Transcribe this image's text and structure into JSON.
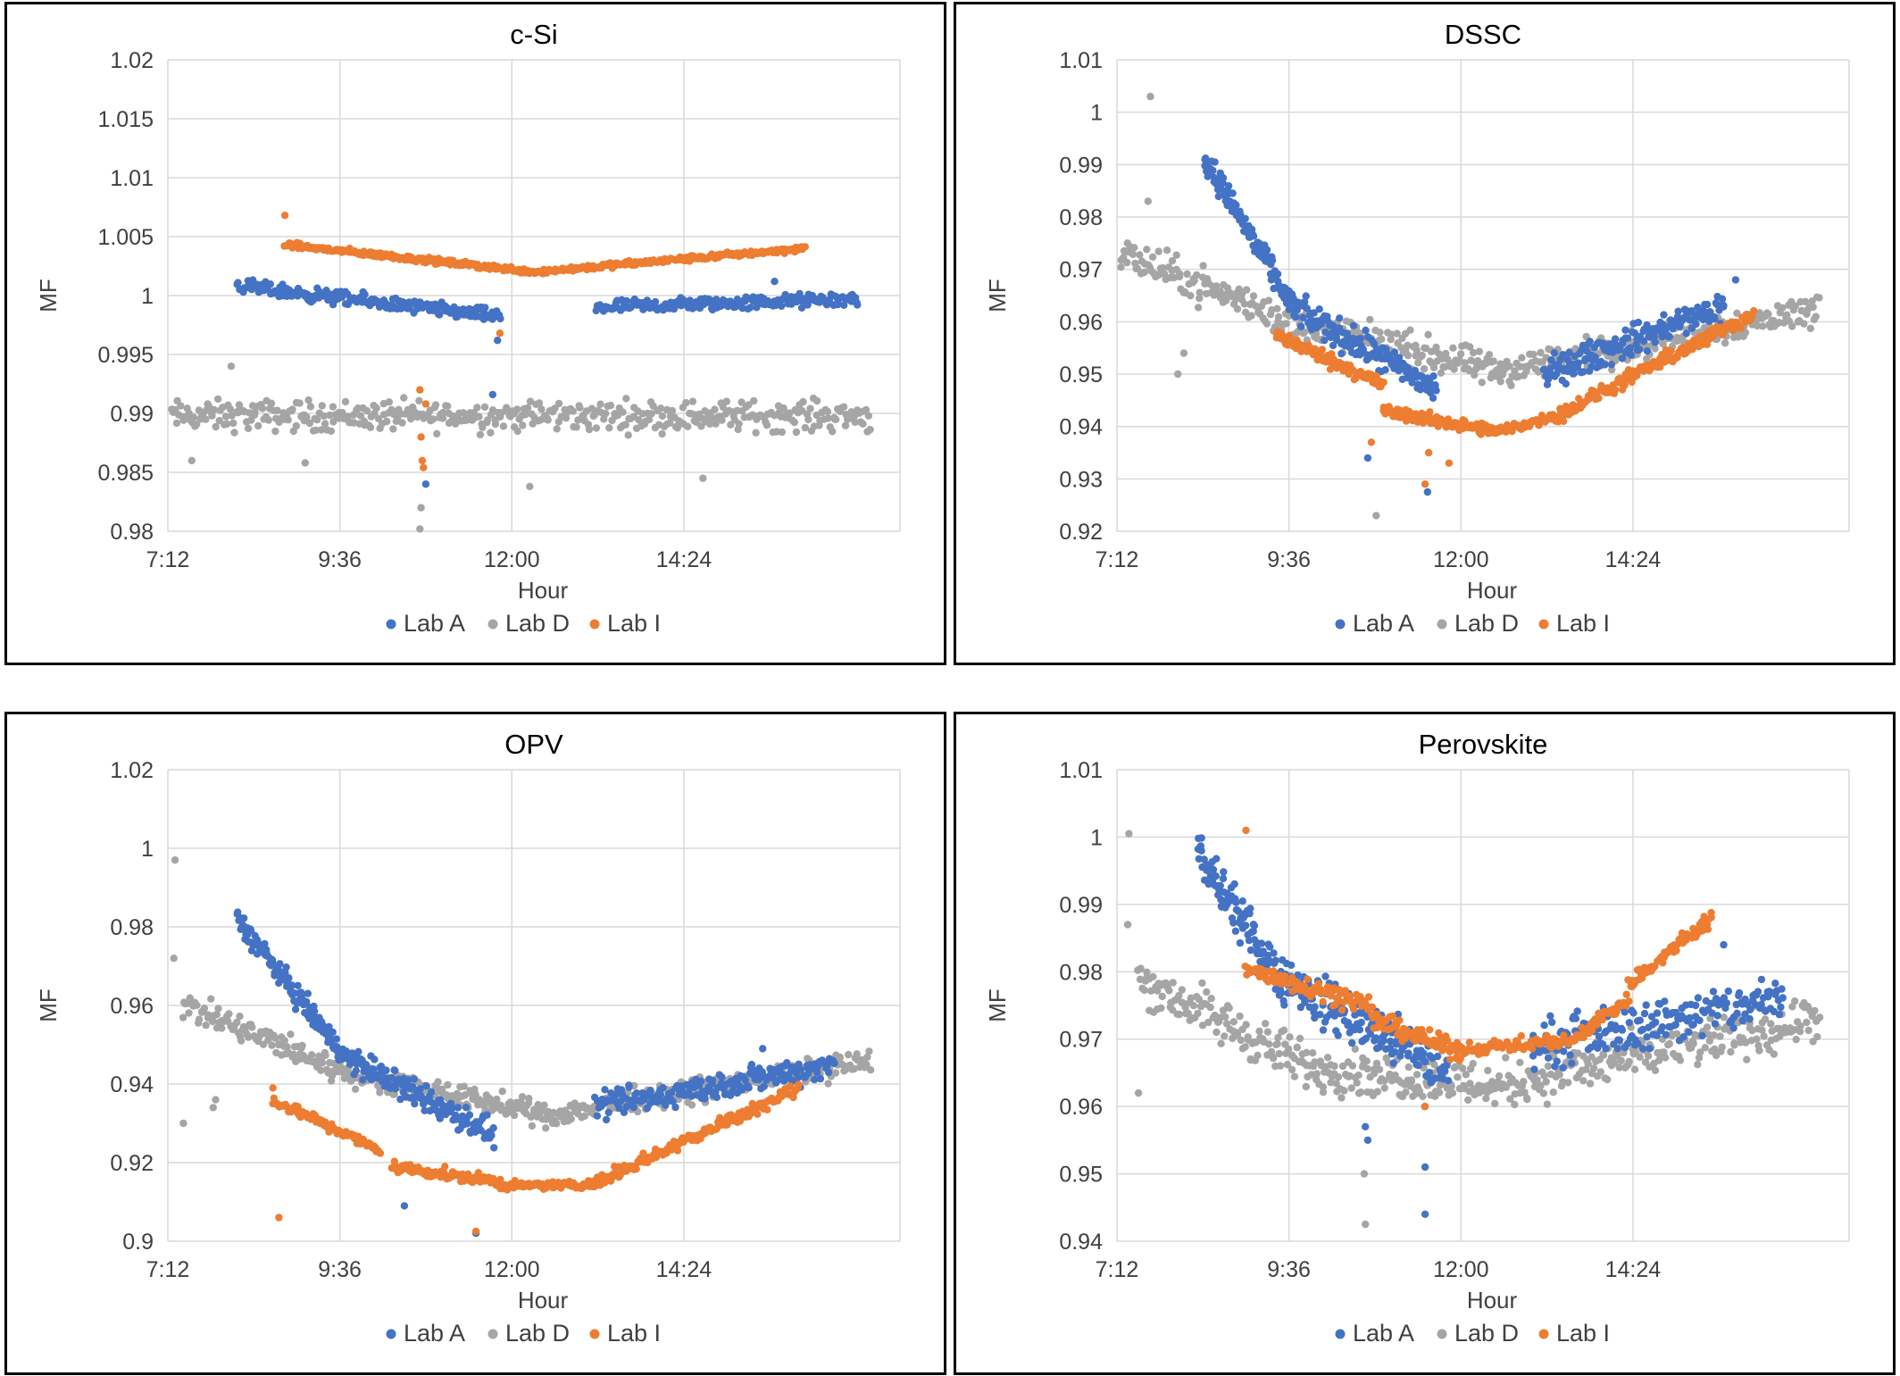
{
  "legend_labels": [
    "Lab A",
    "Lab D",
    "Lab I"
  ],
  "colors": {
    "Lab A": "#4472C4",
    "Lab D": "#A5A5A5",
    "Lab I": "#ED7D31",
    "grid": "#D9D9D9",
    "text": "#404040"
  },
  "chart_data": [
    {
      "type": "scatter",
      "title": "c-Si",
      "xlabel": "Hour",
      "ylabel": "MF",
      "xlim": [
        "7:12",
        "17:25"
      ],
      "xticks": [
        "7:12",
        "9:36",
        "12:00",
        "14:24"
      ],
      "ylim": [
        0.98,
        1.02
      ],
      "yticks": [
        "0.98",
        "0.985",
        "0.99",
        "0.995",
        "1",
        "1.005",
        "1.01",
        "1.015",
        "1.02"
      ],
      "grid": true,
      "legend_position": "bottom",
      "series": [
        {
          "name": "Lab A",
          "segments": [
            {
              "x0": "8:10",
              "x1": "11:50",
              "y0": 1.0008,
              "y1": 0.9982,
              "noise": 0.0005,
              "n": 220
            },
            {
              "x0": "13:10",
              "x1": "16:50",
              "y0": 0.999,
              "y1": 0.9997,
              "noise": 0.0005,
              "n": 200
            }
          ],
          "points": [
            [
              "10:48",
              0.984
            ],
            [
              "11:48",
              0.9962
            ],
            [
              "11:44",
              0.9916
            ],
            [
              "15:40",
              1.0012
            ]
          ]
        },
        {
          "name": "Lab D",
          "segments": [
            {
              "x0": "7:15",
              "x1": "17:00",
              "y0": 0.9898,
              "y1": 0.9898,
              "noise": 0.0011,
              "n": 440
            }
          ],
          "points": [
            [
              "10:43",
              0.9802
            ],
            [
              "10:44",
              0.982
            ],
            [
              "7:32",
              0.986
            ],
            [
              "8:05",
              0.994
            ],
            [
              "9:07",
              0.9858
            ],
            [
              "14:40",
              0.9845
            ],
            [
              "12:15",
              0.9838
            ]
          ]
        },
        {
          "name": "Lab I",
          "segments": [
            {
              "x0": "8:50",
              "x1": "12:20",
              "y0": 1.0043,
              "y1": 1.002,
              "noise": 0.0002,
              "n": 210
            },
            {
              "x0": "12:20",
              "x1": "16:05",
              "y0": 1.002,
              "y1": 1.004,
              "noise": 0.0002,
              "n": 210
            }
          ],
          "points": [
            [
              "8:50",
              1.0068
            ],
            [
              "10:43",
              0.992
            ],
            [
              "10:44",
              0.988
            ],
            [
              "10:45",
              0.986
            ],
            [
              "10:48",
              0.9908
            ],
            [
              "11:50",
              0.9968
            ],
            [
              "10:46",
              0.9854
            ]
          ]
        }
      ]
    },
    {
      "type": "scatter",
      "title": "DSSC",
      "xlabel": "Hour",
      "ylabel": "MF",
      "xlim": [
        "7:12",
        "17:25"
      ],
      "xticks": [
        "7:12",
        "9:36",
        "12:00",
        "14:24"
      ],
      "ylim": [
        0.92,
        1.01
      ],
      "yticks": [
        "0.92",
        "0.93",
        "0.94",
        "0.95",
        "0.96",
        "0.97",
        "0.98",
        "0.99",
        "1",
        "1.01"
      ],
      "grid": true,
      "legend_position": "bottom",
      "series": [
        {
          "name": "Lab A",
          "segments": [
            {
              "x0": "8:25",
              "x1": "9:40",
              "y0": 0.9915,
              "y1": 0.9625,
              "noise": 0.0022,
              "n": 120
            },
            {
              "x0": "9:40",
              "x1": "11:40",
              "y0": 0.9625,
              "y1": 0.947,
              "noise": 0.0025,
              "n": 150
            },
            {
              "x0": "13:10",
              "x1": "15:40",
              "y0": 0.95,
              "y1": 0.963,
              "noise": 0.0025,
              "n": 180
            }
          ],
          "points": [
            [
              "11:32",
              0.9275
            ],
            [
              "10:42",
              0.934
            ],
            [
              "15:50",
              0.968
            ]
          ]
        },
        {
          "name": "Lab D",
          "segments": [
            {
              "x0": "7:15",
              "x1": "9:40",
              "y0": 0.973,
              "y1": 0.96,
              "noise": 0.003,
              "n": 120
            },
            {
              "x0": "9:40",
              "x1": "12:30",
              "y0": 0.96,
              "y1": 0.9505,
              "noise": 0.0028,
              "n": 160
            },
            {
              "x0": "12:30",
              "x1": "17:00",
              "y0": 0.9505,
              "y1": 0.9625,
              "noise": 0.0026,
              "n": 220
            }
          ],
          "points": [
            [
              "7:40",
              1.003
            ],
            [
              "7:38",
              0.983
            ],
            [
              "8:03",
              0.95
            ],
            [
              "10:49",
              0.923
            ],
            [
              "8:08",
              0.954
            ]
          ]
        },
        {
          "name": "Lab I",
          "segments": [
            {
              "x0": "9:25",
              "x1": "10:55",
              "y0": 0.9575,
              "y1": 0.948,
              "noise": 0.0012,
              "n": 100
            },
            {
              "x0": "10:55",
              "x1": "12:30",
              "y0": 0.943,
              "y1": 0.939,
              "noise": 0.001,
              "n": 120
            },
            {
              "x0": "12:30",
              "x1": "13:20",
              "y0": 0.939,
              "y1": 0.942,
              "noise": 0.0008,
              "n": 50
            },
            {
              "x0": "13:20",
              "x1": "16:05",
              "y0": 0.942,
              "y1": 0.9615,
              "noise": 0.0012,
              "n": 170
            }
          ],
          "points": [
            [
              "10:45",
              0.937
            ],
            [
              "11:33",
              0.935
            ],
            [
              "11:50",
              0.933
            ],
            [
              "11:30",
              0.929
            ]
          ]
        }
      ]
    },
    {
      "type": "scatter",
      "title": "OPV",
      "xlabel": "Hour",
      "ylabel": "MF",
      "xlim": [
        "7:12",
        "17:25"
      ],
      "xticks": [
        "7:12",
        "9:36",
        "12:00",
        "14:24"
      ],
      "ylim": [
        0.9,
        1.02
      ],
      "yticks": [
        "0.9",
        "0.92",
        "0.94",
        "0.96",
        "0.98",
        "1",
        "1.02"
      ],
      "grid": true,
      "legend_position": "bottom",
      "series": [
        {
          "name": "Lab A",
          "segments": [
            {
              "x0": "8:10",
              "x1": "9:40",
              "y0": 0.982,
              "y1": 0.947,
              "noise": 0.0025,
              "n": 130
            },
            {
              "x0": "9:40",
              "x1": "11:45",
              "y0": 0.947,
              "y1": 0.927,
              "noise": 0.003,
              "n": 150
            },
            {
              "x0": "13:10",
              "x1": "16:30",
              "y0": 0.934,
              "y1": 0.945,
              "noise": 0.003,
              "n": 190
            }
          ],
          "points": [
            [
              "10:30",
              0.909
            ],
            [
              "11:30",
              0.902
            ],
            [
              "15:30",
              0.949
            ]
          ]
        },
        {
          "name": "Lab D",
          "segments": [
            {
              "x0": "7:25",
              "x1": "9:40",
              "y0": 0.96,
              "y1": 0.943,
              "noise": 0.003,
              "n": 120
            },
            {
              "x0": "9:40",
              "x1": "12:30",
              "y0": 0.943,
              "y1": 0.932,
              "noise": 0.0025,
              "n": 170
            },
            {
              "x0": "12:30",
              "x1": "17:00",
              "y0": 0.932,
              "y1": 0.946,
              "noise": 0.0025,
              "n": 230
            }
          ],
          "points": [
            [
              "7:18",
              0.997
            ],
            [
              "7:17",
              0.972
            ],
            [
              "7:25",
              0.93
            ],
            [
              "7:50",
              0.934
            ],
            [
              "7:52",
              0.936
            ]
          ]
        },
        {
          "name": "Lab I",
          "segments": [
            {
              "x0": "8:40",
              "x1": "10:10",
              "y0": 0.936,
              "y1": 0.923,
              "noise": 0.0012,
              "n": 90
            },
            {
              "x0": "10:20",
              "x1": "11:50",
              "y0": 0.919,
              "y1": 0.915,
              "noise": 0.0012,
              "n": 90
            },
            {
              "x0": "11:50",
              "x1": "13:10",
              "y0": 0.914,
              "y1": 0.9145,
              "noise": 0.0008,
              "n": 90
            },
            {
              "x0": "13:10",
              "x1": "16:00",
              "y0": 0.915,
              "y1": 0.939,
              "noise": 0.0014,
              "n": 170
            }
          ],
          "points": [
            [
              "8:45",
              0.906
            ],
            [
              "11:30",
              0.9025
            ],
            [
              "8:40",
              0.939
            ]
          ]
        }
      ]
    },
    {
      "type": "scatter",
      "title": "Perovskite",
      "xlabel": "Hour",
      "ylabel": "MF",
      "xlim": [
        "7:12",
        "17:25"
      ],
      "xticks": [
        "7:12",
        "9:36",
        "12:00",
        "14:24"
      ],
      "ylim": [
        0.94,
        1.01
      ],
      "yticks": [
        "0.94",
        "0.95",
        "0.96",
        "0.97",
        "0.98",
        "0.99",
        "1",
        "1.01"
      ],
      "grid": true,
      "legend_position": "bottom",
      "series": [
        {
          "name": "Lab A",
          "segments": [
            {
              "x0": "8:20",
              "x1": "9:30",
              "y0": 0.997,
              "y1": 0.979,
              "noise": 0.0028,
              "n": 110
            },
            {
              "x0": "9:30",
              "x1": "11:50",
              "y0": 0.979,
              "y1": 0.965,
              "noise": 0.0032,
              "n": 170
            },
            {
              "x0": "13:00",
              "x1": "16:30",
              "y0": 0.969,
              "y1": 0.976,
              "noise": 0.003,
              "n": 200
            }
          ],
          "points": [
            [
              "11:30",
              0.944
            ],
            [
              "11:30",
              0.951
            ],
            [
              "10:40",
              0.957
            ],
            [
              "10:42",
              0.955
            ],
            [
              "15:40",
              0.984
            ]
          ]
        },
        {
          "name": "Lab D",
          "segments": [
            {
              "x0": "7:30",
              "x1": "9:50",
              "y0": 0.979,
              "y1": 0.966,
              "noise": 0.003,
              "n": 130
            },
            {
              "x0": "9:50",
              "x1": "12:30",
              "y0": 0.966,
              "y1": 0.963,
              "noise": 0.003,
              "n": 150
            },
            {
              "x0": "12:30",
              "x1": "17:00",
              "y0": 0.963,
              "y1": 0.973,
              "noise": 0.003,
              "n": 230
            }
          ],
          "points": [
            [
              "7:22",
              1.0005
            ],
            [
              "7:21",
              0.987
            ],
            [
              "7:30",
              0.962
            ],
            [
              "10:40",
              0.9425
            ],
            [
              "10:39",
              0.95
            ]
          ]
        },
        {
          "name": "Lab I",
          "segments": [
            {
              "x0": "9:00",
              "x1": "10:45",
              "y0": 0.9805,
              "y1": 0.975,
              "noise": 0.0012,
              "n": 100
            },
            {
              "x0": "10:45",
              "x1": "12:00",
              "y0": 0.973,
              "y1": 0.968,
              "noise": 0.0012,
              "n": 80
            },
            {
              "x0": "12:00",
              "x1": "13:40",
              "y0": 0.9685,
              "y1": 0.97,
              "noise": 0.0008,
              "n": 80
            },
            {
              "x0": "13:40",
              "x1": "14:20",
              "y0": 0.971,
              "y1": 0.976,
              "noise": 0.001,
              "n": 40
            },
            {
              "x0": "14:20",
              "x1": "15:30",
              "y0": 0.978,
              "y1": 0.988,
              "noise": 0.001,
              "n": 80
            }
          ],
          "points": [
            [
              "9:00",
              1.001
            ],
            [
              "11:30",
              0.96
            ]
          ]
        }
      ]
    }
  ]
}
